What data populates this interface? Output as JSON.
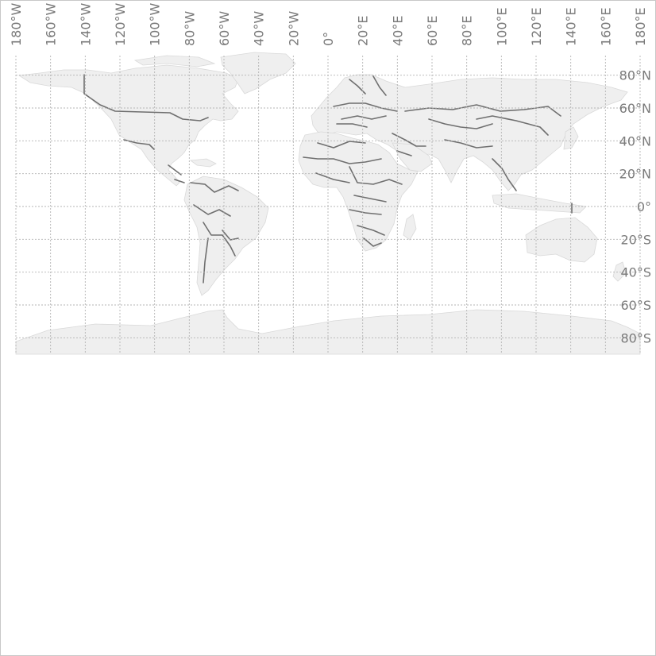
{
  "map": {
    "projection": "equirectangular",
    "lon_range": [
      -180,
      180
    ],
    "lat_range": [
      -90,
      90
    ],
    "graticule_step_deg": 20,
    "colors": {
      "land": "#efefef",
      "coast": "#d9d9d9",
      "borders": "#6f6f6f",
      "graticule": "#b4b4b4",
      "labels": "#7a7a7a"
    },
    "longitude_labels": [
      {
        "value": -180,
        "text": "180°W"
      },
      {
        "value": -160,
        "text": "160°W"
      },
      {
        "value": -140,
        "text": "140°W"
      },
      {
        "value": -120,
        "text": "120°W"
      },
      {
        "value": -100,
        "text": "100°W"
      },
      {
        "value": -80,
        "text": "80°W"
      },
      {
        "value": -60,
        "text": "60°W"
      },
      {
        "value": -40,
        "text": "40°W"
      },
      {
        "value": -20,
        "text": "20°W"
      },
      {
        "value": 0,
        "text": "0°"
      },
      {
        "value": 20,
        "text": "20°E"
      },
      {
        "value": 40,
        "text": "40°E"
      },
      {
        "value": 60,
        "text": "60°E"
      },
      {
        "value": 80,
        "text": "80°E"
      },
      {
        "value": 100,
        "text": "100°E"
      },
      {
        "value": 120,
        "text": "120°E"
      },
      {
        "value": 140,
        "text": "140°E"
      },
      {
        "value": 160,
        "text": "160°E"
      },
      {
        "value": 180,
        "text": "180°E"
      }
    ],
    "latitude_labels": [
      {
        "value": 80,
        "text": "80°N"
      },
      {
        "value": 60,
        "text": "60°N"
      },
      {
        "value": 40,
        "text": "40°N"
      },
      {
        "value": 20,
        "text": "20°N"
      },
      {
        "value": 0,
        "text": "0°"
      },
      {
        "value": -20,
        "text": "20°S"
      },
      {
        "value": -40,
        "text": "40°S"
      },
      {
        "value": -60,
        "text": "60°S"
      },
      {
        "value": -80,
        "text": "80°S"
      }
    ]
  }
}
